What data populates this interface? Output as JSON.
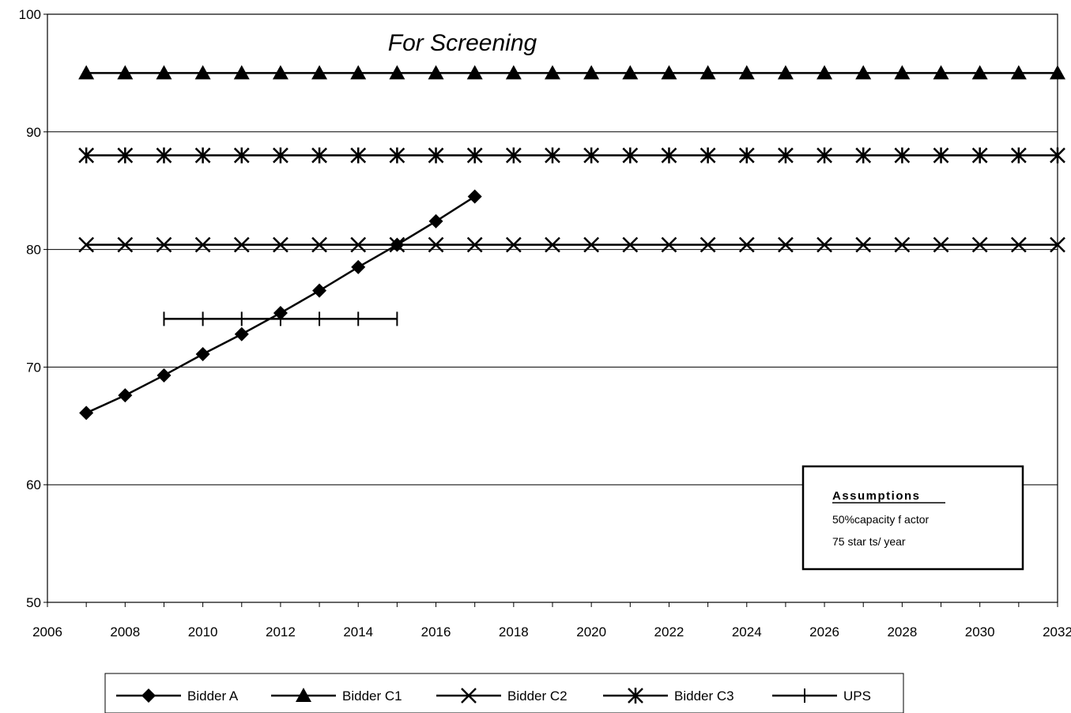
{
  "chart_data": {
    "type": "line",
    "title": "For Screening",
    "xlabel": "",
    "ylabel": "",
    "x": [
      2007,
      2008,
      2009,
      2010,
      2011,
      2012,
      2013,
      2014,
      2015,
      2016,
      2017,
      2018,
      2019,
      2020,
      2021,
      2022,
      2023,
      2024,
      2025,
      2026,
      2027,
      2028,
      2029,
      2030,
      2031,
      2032
    ],
    "xlim": [
      2006,
      2032
    ],
    "ylim": [
      50,
      100
    ],
    "x_ticks": [
      "2006",
      "2008",
      "2010",
      "2012",
      "2014",
      "2016",
      "2018",
      "2020",
      "2022",
      "2024",
      "2026",
      "2028",
      "2030",
      "2032"
    ],
    "y_ticks": [
      "50",
      "60",
      "70",
      "80",
      "90",
      "100"
    ],
    "grid": "horizontal",
    "legend_position": "bottom",
    "series": [
      {
        "name": "Bidder A",
        "marker": "diamond",
        "values": [
          66.1,
          67.6,
          69.3,
          71.1,
          72.8,
          74.6,
          76.5,
          78.5,
          80.4,
          82.4,
          84.5,
          null,
          null,
          null,
          null,
          null,
          null,
          null,
          null,
          null,
          null,
          null,
          null,
          null,
          null,
          null
        ]
      },
      {
        "name": "Bidder C1",
        "marker": "triangle",
        "values": [
          95,
          95,
          95,
          95,
          95,
          95,
          95,
          95,
          95,
          95,
          95,
          95,
          95,
          95,
          95,
          95,
          95,
          95,
          95,
          95,
          95,
          95,
          95,
          95,
          95,
          95
        ]
      },
      {
        "name": "Bidder C2",
        "marker": "x",
        "values": [
          80.4,
          80.4,
          80.4,
          80.4,
          80.4,
          80.4,
          80.4,
          80.4,
          80.4,
          80.4,
          80.4,
          80.4,
          80.4,
          80.4,
          80.4,
          80.4,
          80.4,
          80.4,
          80.4,
          80.4,
          80.4,
          80.4,
          80.4,
          80.4,
          80.4,
          80.4
        ]
      },
      {
        "name": "Bidder C3",
        "marker": "asterisk",
        "values": [
          88,
          88,
          88,
          88,
          88,
          88,
          88,
          88,
          88,
          88,
          88,
          88,
          88,
          88,
          88,
          88,
          88,
          88,
          88,
          88,
          88,
          88,
          88,
          88,
          88,
          88
        ]
      },
      {
        "name": "UPS",
        "marker": "plus",
        "values": [
          null,
          null,
          74.1,
          74.1,
          74.1,
          74.1,
          74.1,
          74.1,
          74.1,
          null,
          null,
          null,
          null,
          null,
          null,
          null,
          null,
          null,
          null,
          null,
          null,
          null,
          null,
          null,
          null,
          null
        ]
      }
    ],
    "annotation": {
      "title": "Assumptions",
      "lines": [
        "50%capacity f actor",
        "75 star ts/ year"
      ]
    }
  }
}
